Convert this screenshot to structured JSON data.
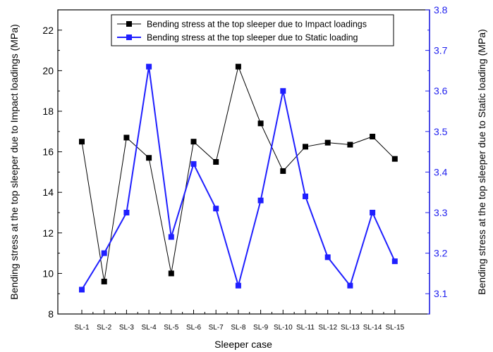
{
  "chart_data": {
    "type": "line",
    "categories": [
      "SL-1",
      "SL-2",
      "SL-3",
      "SL-4",
      "SL-5",
      "SL-6",
      "SL-7",
      "SL-8",
      "SL-9",
      "SL-10",
      "SL-11",
      "SL-12",
      "SL-13",
      "SL-14",
      "SL-15"
    ],
    "xlabel": "Sleeper case",
    "ylabel_left": "Bending stress at the top sleeper due to Impact loadings (MPa)",
    "ylabel_right": "Bending stress at the top sleeper due to Static loading (MPa)",
    "ylim_left": [
      8,
      23
    ],
    "ylim_right": [
      3.05,
      3.8
    ],
    "yticks_left": [
      "8",
      "10",
      "12",
      "14",
      "16",
      "18",
      "20",
      "22"
    ],
    "yticks_right": [
      "3.1",
      "3.2",
      "3.3",
      "3.4",
      "3.5",
      "3.6",
      "3.7",
      "3.8"
    ],
    "legend_position": "top-center",
    "grid": false,
    "series": [
      {
        "name": "Bending stress at the top sleeper due to Impact loadings",
        "axis": "left",
        "color": "#000000",
        "marker": "square",
        "values": [
          16.5,
          9.6,
          16.7,
          15.7,
          10.0,
          16.5,
          15.5,
          20.2,
          17.4,
          15.05,
          16.25,
          16.45,
          16.35,
          16.75,
          15.65
        ]
      },
      {
        "name": "Bending stress at the top sleeper due to Static loading",
        "axis": "right",
        "color": "#1f1fff",
        "marker": "square",
        "values": [
          3.11,
          3.2,
          3.3,
          3.66,
          3.24,
          3.42,
          3.31,
          3.12,
          3.33,
          3.6,
          3.34,
          3.19,
          3.12,
          3.3,
          3.18
        ]
      }
    ]
  }
}
